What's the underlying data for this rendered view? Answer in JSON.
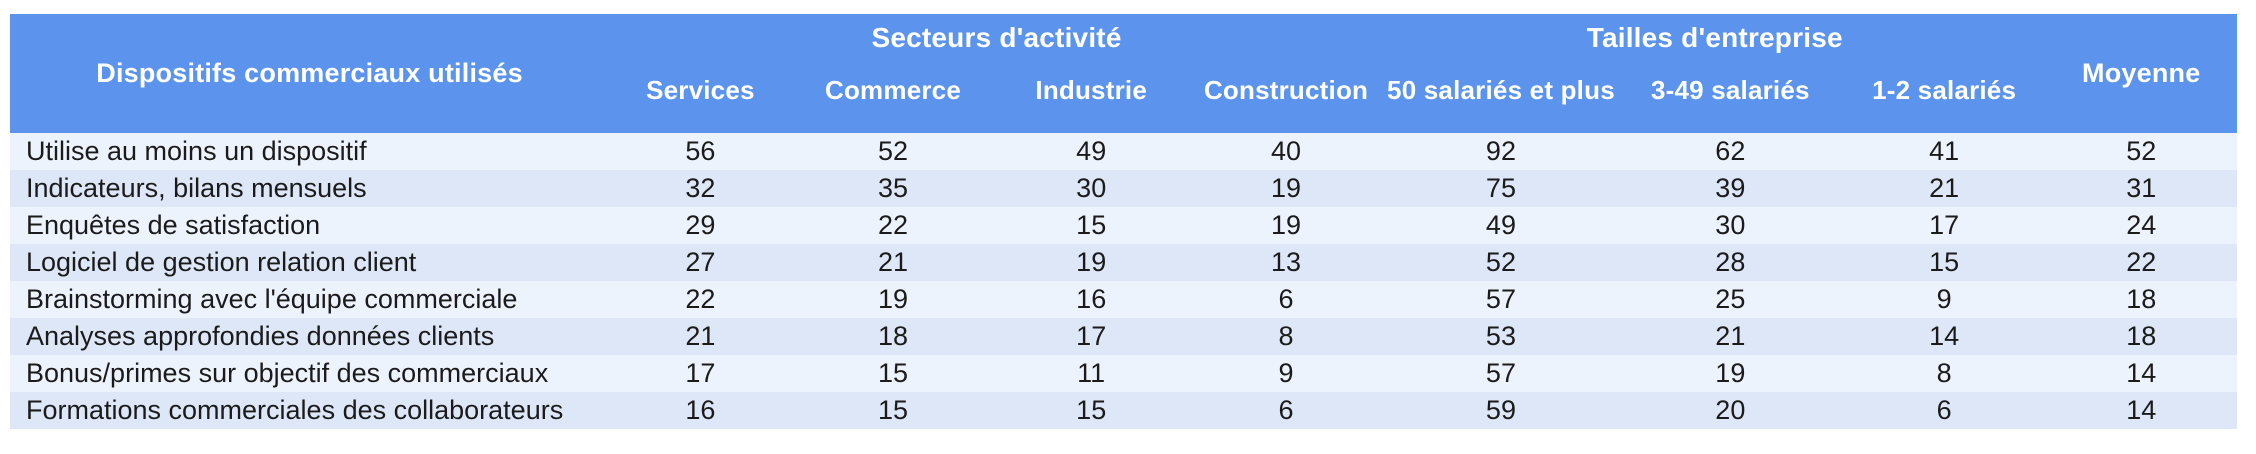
{
  "colors": {
    "header_blue": "#5b93ed",
    "row_light": "#edf3fc",
    "row_dark": "#dde7f7",
    "body_text": "#1b1b1b",
    "header_text": "#ffffff"
  },
  "chart_data": {
    "type": "table",
    "title": "Dispositifs commerciaux utilisés",
    "column_groups": [
      {
        "label": "Secteurs d'activité",
        "span": 4
      },
      {
        "label": "Tailles d'entreprise",
        "span": 3
      }
    ],
    "columns": [
      "Services",
      "Commerce",
      "Industrie",
      "Construction",
      "50 salariés et plus",
      "3-49 salariés",
      "1-2 salariés"
    ],
    "average_label": "Moyenne",
    "rows": [
      {
        "label": "Utilise au moins un dispositif",
        "values": [
          56,
          52,
          49,
          40,
          92,
          62,
          41,
          52
        ]
      },
      {
        "label": "Indicateurs, bilans mensuels",
        "values": [
          32,
          35,
          30,
          19,
          75,
          39,
          21,
          31
        ]
      },
      {
        "label": "Enquêtes de satisfaction",
        "values": [
          29,
          22,
          15,
          19,
          49,
          30,
          17,
          24
        ]
      },
      {
        "label": "Logiciel de gestion relation client",
        "values": [
          27,
          21,
          19,
          13,
          52,
          28,
          15,
          22
        ]
      },
      {
        "label": "Brainstorming avec l'équipe commerciale",
        "values": [
          22,
          19,
          16,
          6,
          57,
          25,
          9,
          18
        ]
      },
      {
        "label": "Analyses approfondies données clients",
        "values": [
          21,
          18,
          17,
          8,
          53,
          21,
          14,
          18
        ]
      },
      {
        "label": "Bonus/primes sur objectif des commerciaux",
        "values": [
          17,
          15,
          11,
          9,
          57,
          19,
          8,
          14
        ]
      },
      {
        "label": "Formations commerciales des collaborateurs",
        "values": [
          16,
          15,
          15,
          6,
          59,
          20,
          6,
          14
        ]
      }
    ]
  }
}
